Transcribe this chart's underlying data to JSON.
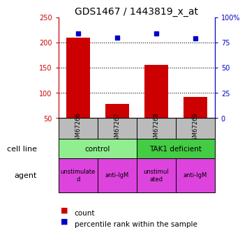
{
  "title": "GDS1467 / 1443819_x_at",
  "samples": [
    "GSM67266",
    "GSM67267",
    "GSM67268",
    "GSM67269"
  ],
  "counts": [
    210,
    78,
    156,
    92
  ],
  "percentile_ranks": [
    84,
    80,
    84,
    79
  ],
  "ylim_left": [
    50,
    250
  ],
  "ylim_right": [
    0,
    100
  ],
  "yticks_left": [
    50,
    100,
    150,
    200,
    250
  ],
  "yticks_right": [
    0,
    25,
    50,
    75,
    100
  ],
  "yticklabels_right": [
    "0",
    "25",
    "50",
    "75",
    "100%"
  ],
  "bar_color": "#cc0000",
  "dot_color": "#0000cc",
  "cell_line_labels": [
    "control",
    "TAK1 deficient"
  ],
  "cell_line_spans": [
    [
      0,
      2
    ],
    [
      2,
      4
    ]
  ],
  "cell_line_colors": [
    "#90ee90",
    "#44cc44"
  ],
  "agent_labels": [
    "unstimulate\nd",
    "anti-IgM",
    "unstimul\nated",
    "anti-IgM"
  ],
  "agent_color": "#dd44dd",
  "left_axis_color": "#cc0000",
  "right_axis_color": "#0000cc",
  "sample_bg_color": "#bbbbbb",
  "tick_label_fontsize": 7,
  "title_fontsize": 10
}
